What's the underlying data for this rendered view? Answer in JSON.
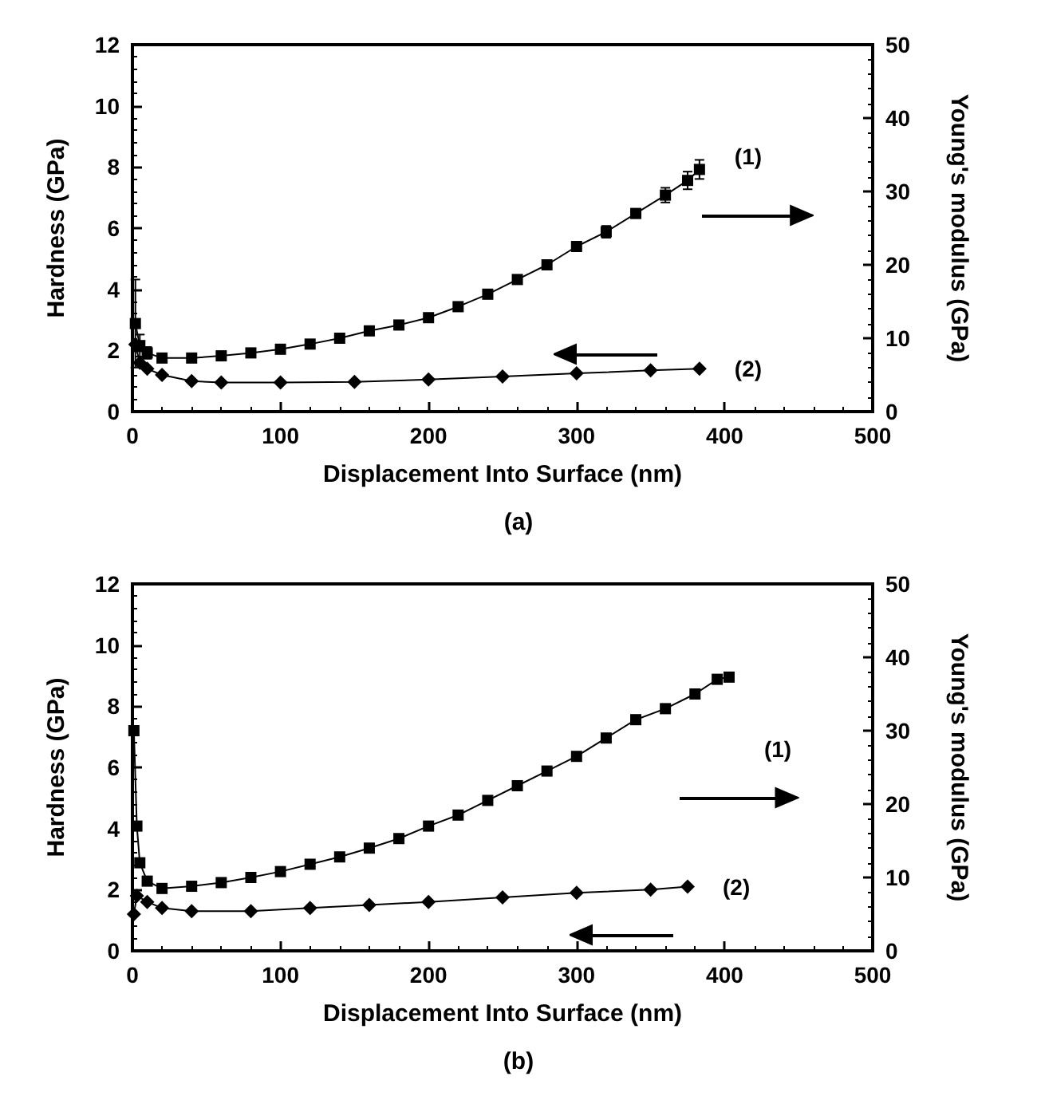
{
  "chart_data": [
    {
      "type": "line",
      "xlabel": "Displacement Into Surface (nm)",
      "ylabel": "Hardness (GPa)",
      "y2label": "Young's modulus (GPa)",
      "xlim": [
        0,
        500
      ],
      "xticks": [
        0,
        100,
        200,
        300,
        400,
        500
      ],
      "ylim": [
        0,
        12
      ],
      "yticks": [
        0,
        2,
        4,
        6,
        8,
        10,
        12
      ],
      "y2lim": [
        0,
        50
      ],
      "y2ticks": [
        0,
        10,
        20,
        30,
        40,
        50
      ],
      "grid": false,
      "series": [
        {
          "axis": "y2",
          "color": "#000000",
          "marker": "square",
          "x": [
            2,
            5,
            10,
            20,
            40,
            60,
            80,
            100,
            120,
            140,
            160,
            180,
            200,
            220,
            240,
            260,
            280,
            300,
            320,
            340,
            360,
            375,
            383
          ],
          "values": [
            12,
            9,
            8,
            7.3,
            7.3,
            7.6,
            8,
            8.5,
            9.2,
            10,
            11,
            11.8,
            12.8,
            14.3,
            16,
            18,
            20,
            22.5,
            24.5,
            27,
            29.5,
            31.5,
            33
          ],
          "errors": [
            6,
            1.5,
            0.8,
            0.4,
            0.3,
            0.3,
            0.3,
            0.3,
            0.3,
            0.3,
            0.3,
            0.3,
            0.3,
            0.4,
            0.4,
            0.4,
            0.5,
            0.6,
            0.8,
            0.6,
            1,
            1.2,
            1.3
          ]
        },
        {
          "color": "#000000",
          "marker": "diamond",
          "x": [
            2,
            5,
            10,
            20,
            40,
            60,
            100,
            150,
            200,
            250,
            300,
            350,
            383
          ],
          "values": [
            2.2,
            1.6,
            1.4,
            1.2,
            1,
            0.95,
            0.95,
            0.97,
            1.05,
            1.15,
            1.25,
            1.35,
            1.4
          ]
        }
      ],
      "annotations": [
        "(1)",
        "(2)",
        "(a)"
      ]
    },
    {
      "type": "line",
      "xlabel": "Displacement Into Surface (nm)",
      "ylabel": "Hardness (GPa)",
      "y2label": "Young's modulus (GPa)",
      "xlim": [
        0,
        500
      ],
      "xticks": [
        0,
        100,
        200,
        300,
        400,
        500
      ],
      "ylim": [
        0,
        12
      ],
      "yticks": [
        0,
        2,
        4,
        6,
        8,
        10,
        12
      ],
      "y2lim": [
        0,
        50
      ],
      "y2ticks": [
        0,
        10,
        20,
        30,
        40,
        50
      ],
      "grid": false,
      "series": [
        {
          "axis": "y2",
          "color": "#000000",
          "marker": "square",
          "x": [
            1,
            3,
            5,
            10,
            20,
            40,
            60,
            80,
            100,
            120,
            140,
            160,
            180,
            200,
            220,
            240,
            260,
            280,
            300,
            320,
            340,
            360,
            380,
            395,
            403
          ],
          "values": [
            30,
            17,
            12,
            9.5,
            8.5,
            8.8,
            9.3,
            10,
            10.8,
            11.8,
            12.8,
            14,
            15.3,
            17,
            18.5,
            20.5,
            22.5,
            24.5,
            26.5,
            29,
            31.5,
            33,
            35,
            37,
            37.3
          ]
        },
        {
          "color": "#000000",
          "marker": "diamond",
          "x": [
            1,
            3,
            10,
            20,
            40,
            80,
            120,
            160,
            200,
            250,
            300,
            350,
            375
          ],
          "values": [
            1.2,
            1.8,
            1.6,
            1.4,
            1.3,
            1.3,
            1.4,
            1.5,
            1.6,
            1.75,
            1.9,
            2,
            2.1
          ]
        }
      ],
      "annotations": [
        "(1)",
        "(2)",
        "(b)"
      ]
    }
  ]
}
